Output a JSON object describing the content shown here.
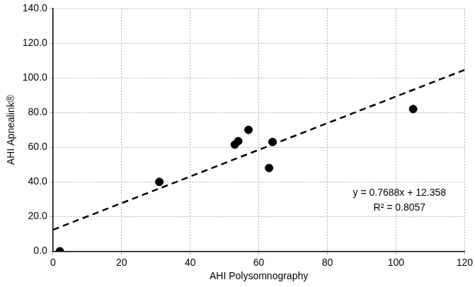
{
  "chart_data": {
    "type": "scatter",
    "x_label": "AHI Polysomnography",
    "y_label": "AHI Apnealink®",
    "series": [
      {
        "type": "scatter",
        "marker": "circle",
        "color": "#000000",
        "x": [
          2,
          31,
          53,
          54,
          57,
          63,
          64,
          105
        ],
        "values": [
          0,
          40,
          61.5,
          63.5,
          70,
          48,
          63,
          82
        ]
      },
      {
        "type": "line",
        "line_style": "dashed",
        "color": "#000000",
        "x": [
          0,
          120
        ],
        "values": [
          12.358,
          104.614
        ]
      }
    ],
    "annotations": [
      "y = 0.7688x + 12.358",
      "R² = 0.8057"
    ],
    "xlim": [
      0,
      120
    ],
    "xticks": [
      0,
      20,
      40,
      60,
      80,
      100,
      120
    ],
    "ylim": [
      0,
      140
    ],
    "yticks": [
      {
        "value": 0,
        "label": "0.0"
      },
      {
        "value": 20,
        "label": "20.0"
      },
      {
        "value": 40,
        "label": "40.0"
      },
      {
        "value": 60,
        "label": "60.0"
      },
      {
        "value": 80,
        "label": "80.0"
      },
      {
        "value": 100,
        "label": "100.0"
      },
      {
        "value": 120,
        "label": "120.0"
      },
      {
        "value": 140,
        "label": "140.0"
      }
    ],
    "grid": true
  }
}
